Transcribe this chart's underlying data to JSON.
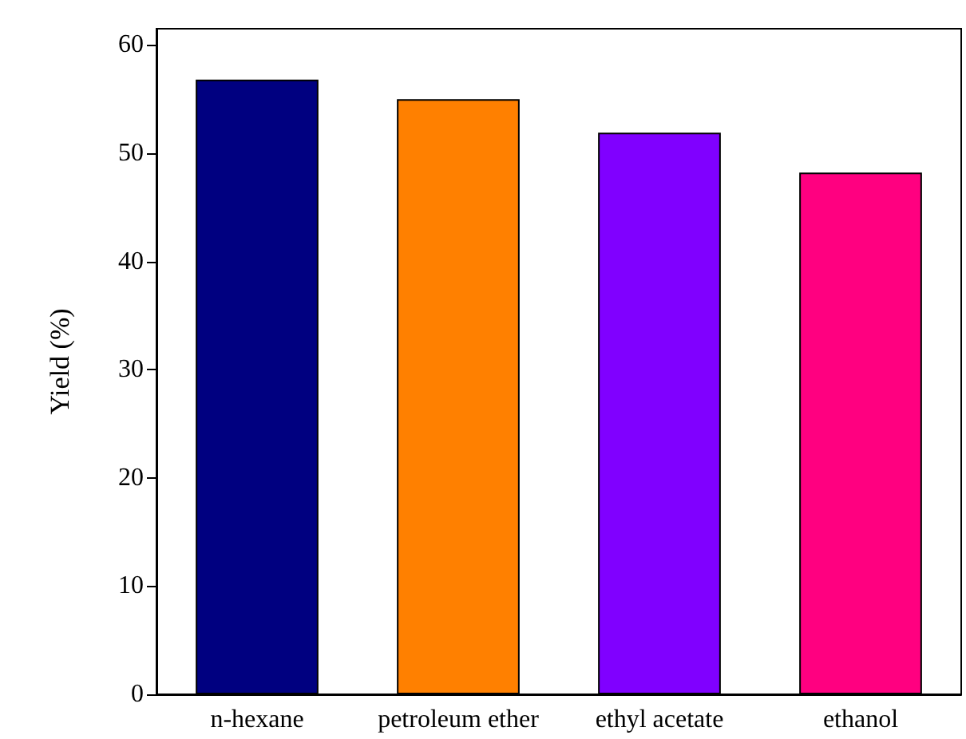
{
  "chart_data": {
    "type": "bar",
    "ylabel": "Yield (%)",
    "categories": [
      "n-hexane",
      "petroleum ether",
      "ethyl acetate",
      "ethanol"
    ],
    "values": [
      56.8,
      55.0,
      51.9,
      48.2
    ],
    "colors": [
      "#000080",
      "#ff8000",
      "#8000ff",
      "#ff0080"
    ],
    "ylim": [
      0,
      61.5
    ],
    "yticks": [
      0,
      10,
      20,
      30,
      40,
      50,
      60
    ],
    "grid": false
  }
}
